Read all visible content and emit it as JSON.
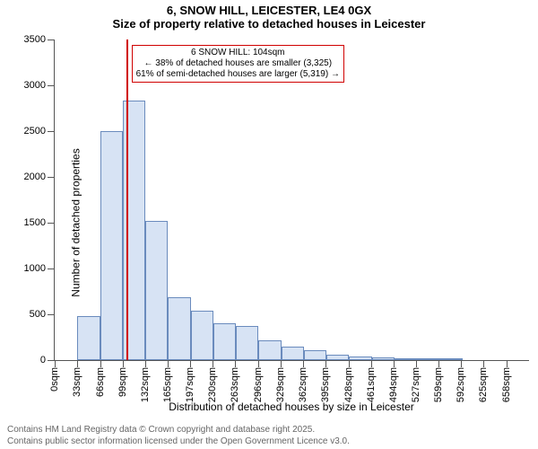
{
  "title_line1": "6, SNOW HILL, LEICESTER, LE4 0GX",
  "title_line2": "Size of property relative to detached houses in Leicester",
  "ylabel": "Number of detached properties",
  "xlabel": "Distribution of detached houses by size in Leicester",
  "histogram": {
    "type": "histogram",
    "bar_fill": "#d7e3f4",
    "bar_stroke": "#6a8bbd",
    "background": "#ffffff",
    "axis_color": "#555555",
    "ylim": [
      0,
      3500
    ],
    "ytick_step": 500,
    "bin_width_sqm": 33,
    "x_start_sqm": 0,
    "x_ticks_sqm": [
      0,
      33,
      66,
      99,
      132,
      165,
      197,
      230,
      263,
      296,
      329,
      362,
      395,
      428,
      461,
      494,
      527,
      559,
      592,
      625,
      658
    ],
    "x_tick_unit": "sqm",
    "values": [
      0,
      480,
      2500,
      2830,
      1520,
      690,
      540,
      400,
      370,
      220,
      150,
      110,
      60,
      40,
      30,
      20,
      10,
      5,
      0,
      0,
      0
    ]
  },
  "marker": {
    "position_sqm": 104,
    "line_color": "#d00000",
    "callout_border": "#d00000",
    "callout_bg": "#ffffff",
    "line1": "6 SNOW HILL: 104sqm",
    "line2": "← 38% of detached houses are smaller (3,325)",
    "line3": "61% of semi-detached houses are larger (5,319) →"
  },
  "footer": {
    "line1": "Contains HM Land Registry data © Crown copyright and database right 2025.",
    "line2": "Contains public sector information licensed under the Open Government Licence v3.0."
  }
}
